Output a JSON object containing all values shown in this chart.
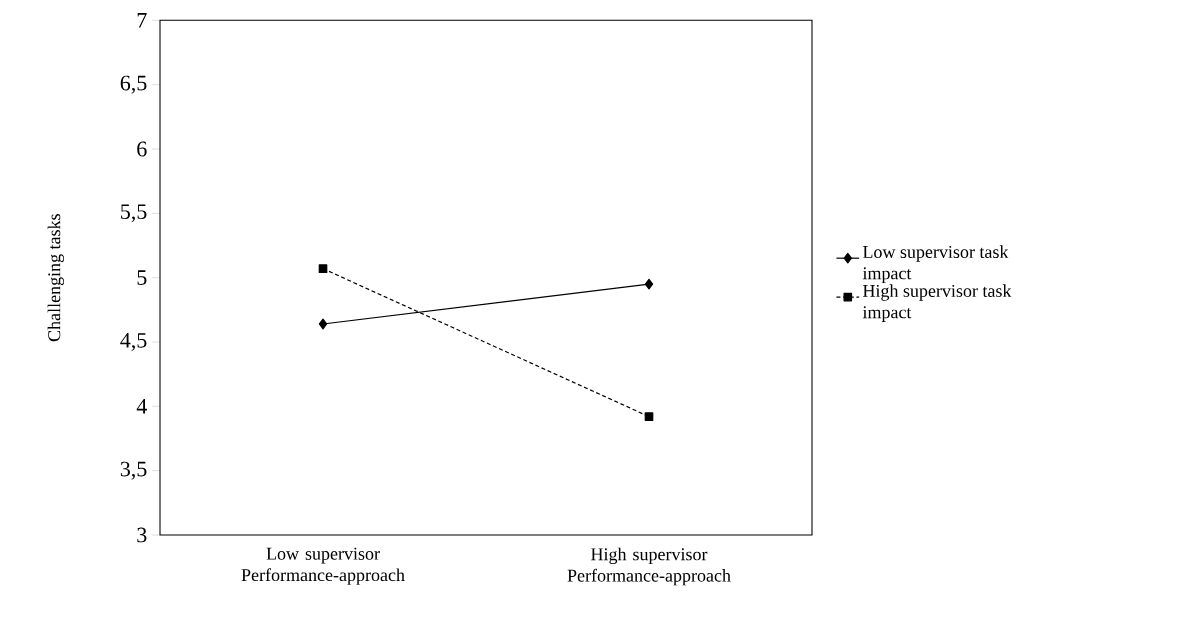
{
  "chart_data": {
    "type": "line",
    "ylabel": "Challenging tasks",
    "categories": [
      "Low supervisor Performance-approach",
      "High supervisor Performance-approach"
    ],
    "series": [
      {
        "name": "Low supervisor task impact",
        "color": "#000000",
        "values": [
          4.64,
          4.95
        ],
        "marker": "diamond",
        "line_style": "solid"
      },
      {
        "name": "High supervisor task impact",
        "color": "#000000",
        "values": [
          5.07,
          3.92
        ],
        "marker": "square",
        "line_style": "dotted"
      }
    ],
    "ylim": [
      3,
      7
    ],
    "yticks": [
      3,
      {
        "value": 3.5,
        "label": "3,5"
      },
      4,
      {
        "value": 4.5,
        "label": "4,5"
      },
      5,
      {
        "value": 5.5,
        "label": "5,5"
      },
      6,
      {
        "value": 6.5,
        "label": "6,5"
      },
      7
    ],
    "legend": "right",
    "grid": false
  }
}
